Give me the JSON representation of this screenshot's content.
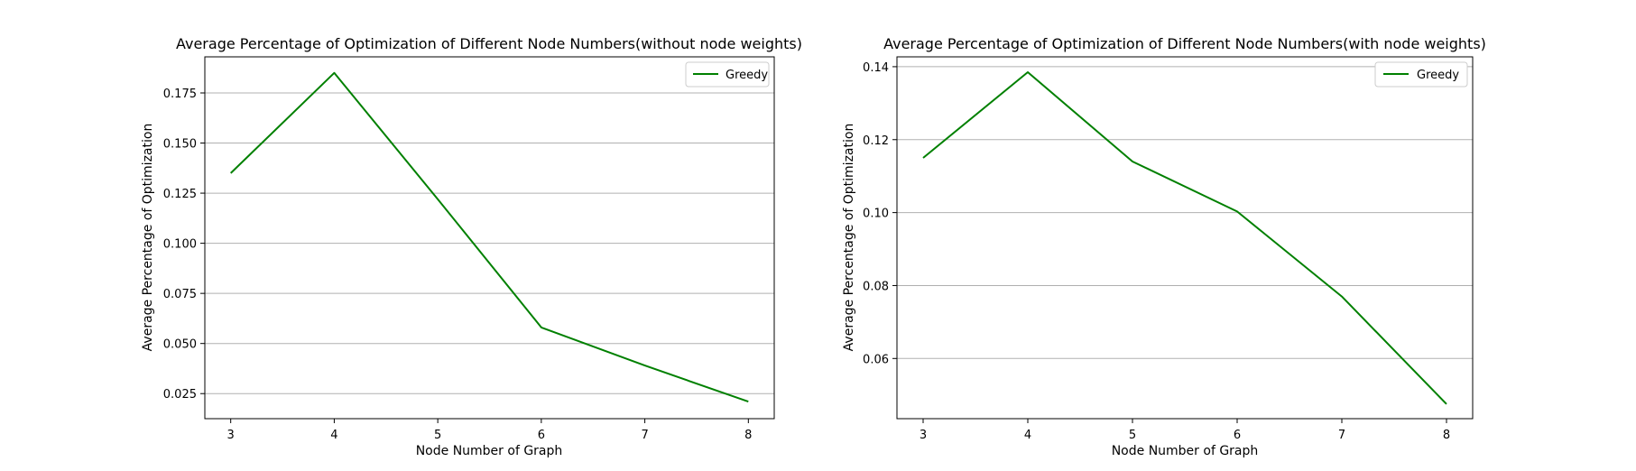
{
  "chart_data": [
    {
      "type": "line",
      "title": "Average Percentage of Optimization of Different Node Numbers(without node weights)",
      "xlabel": "Node Number of Graph",
      "ylabel": "Average Percentage of Optimization",
      "x": [
        3,
        4,
        5,
        6,
        7,
        8
      ],
      "xticks": [
        "3",
        "4",
        "5",
        "6",
        "7",
        "8"
      ],
      "xlim": [
        2.75,
        8.25
      ],
      "ylim": [
        0.0125,
        0.193
      ],
      "yticks": [
        "0.025",
        "0.050",
        "0.075",
        "0.100",
        "0.125",
        "0.150",
        "0.175"
      ],
      "grid": "y",
      "legend_position": "top-right",
      "series": [
        {
          "name": "Greedy",
          "color": "#008000",
          "values": [
            0.135,
            0.185,
            0.122,
            0.058,
            0.039,
            0.021
          ]
        }
      ]
    },
    {
      "type": "line",
      "title": "Average Percentage of Optimization of Different Node Numbers(with node weights)",
      "xlabel": "Node Number of Graph",
      "ylabel": "Average Percentage of Optimization",
      "x": [
        3,
        4,
        5,
        6,
        7,
        8
      ],
      "xticks": [
        "3",
        "4",
        "5",
        "6",
        "7",
        "8"
      ],
      "xlim": [
        2.75,
        8.25
      ],
      "ylim": [
        0.0435,
        0.1427
      ],
      "yticks": [
        "0.06",
        "0.08",
        "0.10",
        "0.12",
        "0.14"
      ],
      "grid": "y",
      "legend_position": "top-right",
      "series": [
        {
          "name": "Greedy",
          "color": "#008000",
          "values": [
            0.115,
            0.1385,
            0.114,
            0.1003,
            0.077,
            0.0475
          ]
        }
      ]
    }
  ]
}
